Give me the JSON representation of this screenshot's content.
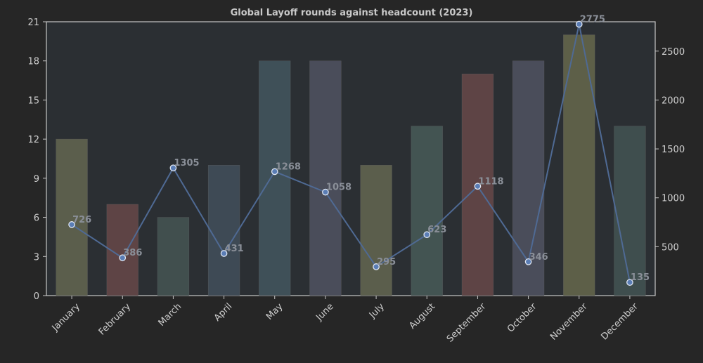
{
  "chart_data": {
    "type": "bar+line",
    "title": "Global Layoff rounds against headcount (2023)",
    "categories": [
      "January",
      "February",
      "March",
      "April",
      "May",
      "June",
      "July",
      "August",
      "September",
      "October",
      "November",
      "December"
    ],
    "bars": {
      "axis": "left",
      "values": [
        12,
        7,
        6,
        10,
        18,
        18,
        10,
        13,
        17,
        18,
        20,
        13
      ],
      "colors": [
        "#5b5e4c",
        "#5e4445",
        "#414f4e",
        "#3e4a55",
        "#3f5058",
        "#4a4d5a",
        "#5b5e4c",
        "#435452",
        "#5e4445",
        "#4a4d5a",
        "#5d5f48",
        "#3f4e4e"
      ]
    },
    "line": {
      "axis": "right",
      "values": [
        726,
        386,
        1305,
        431,
        1268,
        1058,
        295,
        623,
        1118,
        346,
        2775,
        135
      ],
      "labels": [
        "726",
        "386",
        "1305",
        "431",
        "1268",
        "1058",
        "295",
        "623",
        "1118",
        "346",
        "2775",
        "135"
      ],
      "color": "#4f6a94"
    },
    "y_left": {
      "ylim": [
        0,
        21
      ],
      "ticks": [
        0,
        3,
        6,
        9,
        12,
        15,
        18,
        21
      ]
    },
    "y_right": {
      "ylim": [
        0,
        2800
      ],
      "ticks": [
        500,
        1000,
        1500,
        2000,
        2500
      ]
    },
    "grid": false,
    "legend": "none"
  }
}
